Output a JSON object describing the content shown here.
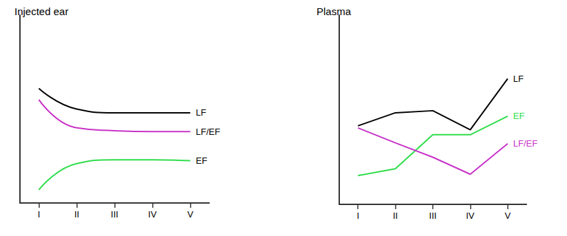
{
  "chart_data": [
    {
      "type": "line",
      "title": "Injected ear",
      "categories": [
        "I",
        "II",
        "III",
        "IV",
        "V"
      ],
      "ylim": [
        0,
        100
      ],
      "tick_labels": "x",
      "grid": false,
      "line_style": "curved",
      "series": [
        {
          "name": "LF",
          "color": "#000000",
          "values": [
            61,
            50,
            48,
            48,
            48
          ]
        },
        {
          "name": "LF/EF",
          "color": "#c832c8",
          "values": [
            55,
            40,
            38.5,
            38,
            38
          ]
        },
        {
          "name": "EF",
          "color": "#2edc4a",
          "values": [
            7,
            21,
            23,
            23,
            22.5
          ]
        }
      ]
    },
    {
      "type": "line",
      "title": "Plasma",
      "categories": [
        "I",
        "II",
        "III",
        "IV",
        "V"
      ],
      "ylim": [
        0,
        100
      ],
      "tick_labels": "x",
      "grid": false,
      "line_style": "straight",
      "series": [
        {
          "name": "LF",
          "color": "#000000",
          "values": [
            41.5,
            48.4,
            49.5,
            39.4,
            66.4
          ]
        },
        {
          "name": "EF",
          "color": "#2edc4a",
          "values": [
            15.2,
            18.8,
            36.8,
            36.8,
            46.6
          ]
        },
        {
          "name": "LF/EF",
          "color": "#c832c8",
          "values": [
            40.4,
            32.5,
            24.9,
            15.9,
            32.1
          ]
        }
      ]
    }
  ]
}
